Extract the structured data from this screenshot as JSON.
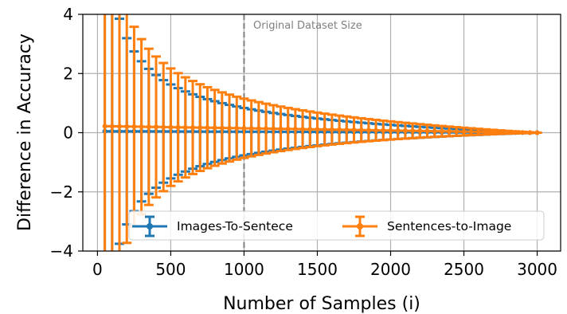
{
  "chart_data": {
    "type": "line",
    "xlabel": "Number of Samples (i)",
    "ylabel": "Difference in Accuracy",
    "xlim": [
      -100,
      3160
    ],
    "ylim": [
      -4,
      4
    ],
    "x_ticks": [
      0,
      500,
      1000,
      1500,
      2000,
      2500,
      3000
    ],
    "y_ticks": [
      -4,
      -2,
      0,
      2,
      4
    ],
    "x_tick_labels": [
      "0",
      "500",
      "1000",
      "1500",
      "2000",
      "2500",
      "3000"
    ],
    "y_tick_labels": [
      "−4",
      "−2",
      "0",
      "2",
      "4"
    ],
    "grid": true,
    "legend_placement": "lower-center",
    "vline": {
      "x": 1000,
      "label": "Original Dataset Size",
      "color": "#808080"
    },
    "x": {
      "start": 50,
      "step": 50,
      "count": 60
    },
    "series": [
      {
        "name": "Images-To-Sentece",
        "color": "#1f77b4",
        "mean_start": 0.05,
        "error_scale": 60
      },
      {
        "name": "Sentences-to-Image",
        "color": "#ff7f0e",
        "mean_start": 0.22,
        "error_scale": 75
      }
    ]
  }
}
